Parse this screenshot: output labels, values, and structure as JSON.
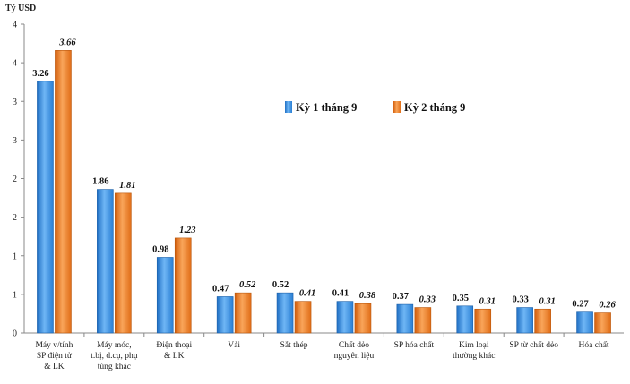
{
  "chart_data": {
    "type": "bar",
    "unit": "Tỷ USD",
    "yticks": [
      "0",
      "1",
      "1",
      "2",
      "2",
      "3",
      "3",
      "4",
      "4"
    ],
    "ylim": [
      0,
      4
    ],
    "grid": false,
    "legend_position": "top-right",
    "categories": [
      [
        "Máy v/tính",
        "SP điện tử",
        "& LK"
      ],
      [
        "Máy móc,",
        "t.bị, d.cụ, phụ",
        "tùng khác"
      ],
      [
        "Điện thoại",
        "& LK"
      ],
      [
        "Vải"
      ],
      [
        "Sắt thép"
      ],
      [
        "Chất dẻo",
        "nguyên liệu"
      ],
      [
        "SP hóa chất"
      ],
      [
        "Kim loại",
        "thường khác"
      ],
      [
        "SP từ chất dẻo"
      ],
      [
        "Hóa chất"
      ]
    ],
    "series": [
      {
        "name": "Kỳ 1 tháng 9",
        "color": "#3b8fe0",
        "values": [
          3.26,
          1.86,
          0.98,
          0.47,
          0.52,
          0.41,
          0.37,
          0.35,
          0.33,
          0.27
        ],
        "labels": [
          "3.26",
          "1.86",
          "0.98",
          "0.47",
          "0.52",
          "0.41",
          "0.37",
          "0.35",
          "0.33",
          "0.27"
        ]
      },
      {
        "name": "Kỳ 2 tháng 9",
        "color": "#f07f22",
        "values": [
          3.66,
          1.81,
          1.23,
          0.52,
          0.41,
          0.38,
          0.33,
          0.31,
          0.31,
          0.26
        ],
        "labels": [
          "3.66",
          "1.81",
          "1.23",
          "0.52",
          "0.41",
          "0.38",
          "0.33",
          "0.31",
          "0.31",
          "0.26"
        ]
      }
    ]
  }
}
